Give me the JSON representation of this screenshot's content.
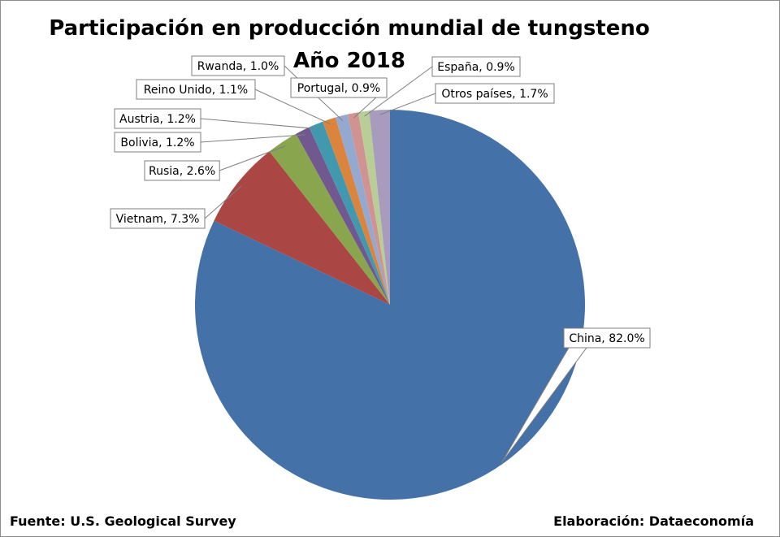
{
  "chart_data": {
    "type": "pie",
    "title": "Participación en producción mundial de tungsteno",
    "subtitle": "Año 2018",
    "slices": [
      {
        "label": "China",
        "value": 82.0,
        "display": "China, 82.0%",
        "color": "#4472A8"
      },
      {
        "label": "Vietnam",
        "value": 7.3,
        "display": "Vietnam, 7.3%",
        "color": "#AA4643"
      },
      {
        "label": "Rusia",
        "value": 2.6,
        "display": "Rusia, 2.6%",
        "color": "#89A54E"
      },
      {
        "label": "Bolivia",
        "value": 1.2,
        "display": "Bolivia, 1.2%",
        "color": "#71588F"
      },
      {
        "label": "Austria",
        "value": 1.2,
        "display": "Austria, 1.2%",
        "color": "#4198AF"
      },
      {
        "label": "Reino Unido",
        "value": 1.1,
        "display": "Reino Unido, 1.1%",
        "color": "#DB843D"
      },
      {
        "label": "Rwanda",
        "value": 1.0,
        "display": "Rwanda, 1.0%",
        "color": "#93A9CF"
      },
      {
        "label": "Portugal",
        "value": 0.9,
        "display": "Portugal, 0.9%",
        "color": "#D19392"
      },
      {
        "label": "España",
        "value": 0.9,
        "display": "España, 0.9%",
        "color": "#B9CD96"
      },
      {
        "label": "Otros países",
        "value": 1.7,
        "display": "Otros países, 1.7%",
        "color": "#A99BBD"
      }
    ]
  },
  "footer": {
    "source": "Fuente: U.S. Geological Survey",
    "credit": "Elaboración: Dataeconomía"
  }
}
